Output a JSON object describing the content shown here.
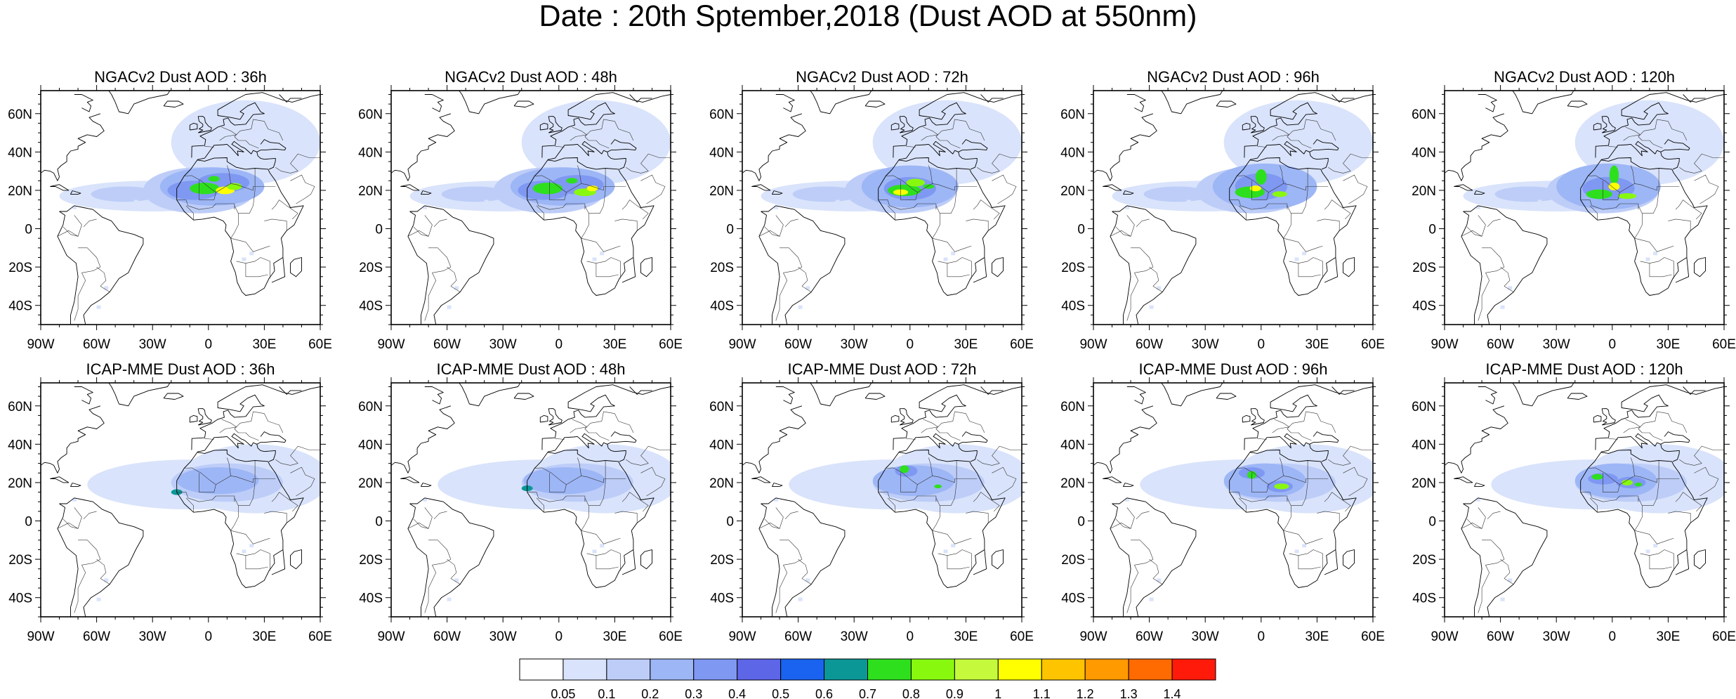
{
  "title": "Date : 20th Sptember,2018 (Dust AOD at 550nm)",
  "axes": {
    "lon_labels": [
      "90W",
      "60W",
      "30W",
      "0",
      "30E",
      "60E"
    ],
    "lat_labels": [
      "60N",
      "40N",
      "20N",
      "0",
      "20S",
      "40S"
    ]
  },
  "panels": [
    {
      "title": "NGACv2 Dust AOD : 36h",
      "model": "NGACv2",
      "lead": 36
    },
    {
      "title": "NGACv2 Dust AOD : 48h",
      "model": "NGACv2",
      "lead": 48
    },
    {
      "title": "NGACv2 Dust AOD : 72h",
      "model": "NGACv2",
      "lead": 72
    },
    {
      "title": "NGACv2 Dust AOD : 96h",
      "model": "NGACv2",
      "lead": 96
    },
    {
      "title": "NGACv2 Dust AOD : 120h",
      "model": "NGACv2",
      "lead": 120
    },
    {
      "title": "ICAP-MME Dust AOD : 36h",
      "model": "ICAP-MME",
      "lead": 36
    },
    {
      "title": "ICAP-MME Dust AOD : 48h",
      "model": "ICAP-MME",
      "lead": 48
    },
    {
      "title": "ICAP-MME Dust AOD : 72h",
      "model": "ICAP-MME",
      "lead": 72
    },
    {
      "title": "ICAP-MME Dust AOD : 96h",
      "model": "ICAP-MME",
      "lead": 96
    },
    {
      "title": "ICAP-MME Dust AOD : 120h",
      "model": "ICAP-MME",
      "lead": 120
    }
  ],
  "colorbar": {
    "labels": [
      "0.05",
      "0.1",
      "0.2",
      "0.3",
      "0.4",
      "0.5",
      "0.6",
      "0.7",
      "0.8",
      "0.9",
      "1",
      "1.1",
      "1.2",
      "1.3",
      "1.4"
    ],
    "colors": [
      "#ffffff",
      "#d9e3fb",
      "#bdcdf8",
      "#9db6f6",
      "#7f98f2",
      "#5e66e8",
      "#1a63f0",
      "#0c9797",
      "#2edf1e",
      "#89f80f",
      "#c5fa3c",
      "#ffff00",
      "#ffc400",
      "#ff9a00",
      "#ff6b00",
      "#ff1a0a"
    ]
  }
}
